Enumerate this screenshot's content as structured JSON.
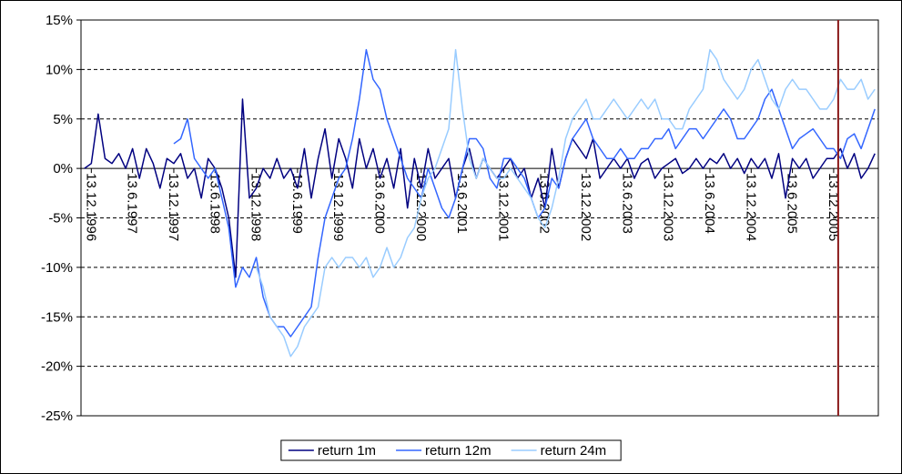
{
  "chart_data": {
    "type": "line",
    "categories": [
      null,
      "13.12.1996",
      null,
      null,
      null,
      null,
      null,
      "13.6.1997",
      null,
      null,
      null,
      null,
      null,
      "13.12.1997",
      null,
      null,
      null,
      null,
      null,
      "13.6.1998",
      null,
      null,
      null,
      null,
      null,
      "13.12.1998",
      null,
      null,
      null,
      null,
      null,
      "13.6.1999",
      null,
      null,
      null,
      null,
      null,
      "13.12.1999",
      null,
      null,
      null,
      null,
      null,
      "13.6.2000",
      null,
      null,
      null,
      null,
      null,
      "13.12.2000",
      null,
      null,
      null,
      null,
      null,
      "13.6.2001",
      null,
      null,
      null,
      null,
      null,
      "13.12.2001",
      null,
      null,
      null,
      null,
      null,
      "13.6.2002",
      null,
      null,
      null,
      null,
      null,
      "13.12.2002",
      null,
      null,
      null,
      null,
      null,
      "13.6.2003",
      null,
      null,
      null,
      null,
      null,
      "13.12.2003",
      null,
      null,
      null,
      null,
      null,
      "13.6.2004",
      null,
      null,
      null,
      null,
      null,
      "13.12.2004",
      null,
      null,
      null,
      null,
      null,
      "13.6.2005",
      null,
      null,
      null,
      null,
      null,
      "13.12.2005",
      null,
      null,
      null,
      null,
      null,
      null
    ],
    "series": [
      {
        "name": "return 1m",
        "color": "#000080",
        "values": [
          0,
          0.5,
          5.5,
          1,
          0.5,
          1.5,
          0,
          2,
          -1,
          2,
          0.5,
          -2,
          1,
          0.5,
          1.5,
          -1,
          0,
          -3,
          1,
          0,
          -2,
          -5,
          -11,
          7,
          -3,
          -2,
          0,
          -1,
          1,
          -1,
          0,
          -2,
          2,
          -3,
          1,
          4,
          -1,
          3,
          1,
          -2,
          3,
          0,
          2,
          -1,
          1,
          -2,
          2,
          -4,
          1,
          -2,
          2,
          -1,
          0,
          1,
          -3,
          0,
          2,
          -1,
          1,
          0,
          -1,
          0,
          1,
          -1,
          0,
          -3,
          -1,
          -4,
          2,
          -2,
          1,
          3,
          2,
          1,
          3,
          -1,
          0,
          1,
          0,
          1,
          -1,
          0.5,
          1,
          -1,
          0,
          0.5,
          1,
          -0.5,
          0,
          1,
          0,
          1,
          0.5,
          1.5,
          0,
          1,
          -0.5,
          1,
          0,
          1,
          -1,
          1.5,
          -3,
          1,
          0,
          1,
          -1,
          0,
          1,
          1,
          2,
          0,
          1.5,
          -1,
          0,
          1.5
        ]
      },
      {
        "name": "return 12m",
        "color": "#3366ff",
        "values": [
          null,
          null,
          null,
          null,
          null,
          null,
          null,
          null,
          null,
          null,
          null,
          null,
          null,
          2.5,
          3,
          5,
          1,
          0,
          -1,
          0,
          -3,
          -6,
          -12,
          -10,
          -11,
          -9,
          -13,
          -15,
          -16,
          -16,
          -17,
          -16,
          -15,
          -14,
          -9,
          -5,
          -3,
          -1,
          0,
          3,
          7,
          12,
          9,
          8,
          5,
          3,
          1,
          -1,
          -2,
          -3,
          0,
          -2,
          -4,
          -5,
          -3,
          0,
          3,
          3,
          2,
          -1,
          -2,
          1,
          1,
          0,
          -1,
          -3,
          -5,
          -4,
          -1,
          -2,
          1,
          3,
          4,
          5,
          3,
          2,
          1,
          1,
          2,
          1,
          1,
          2,
          2,
          3,
          3,
          4,
          2,
          3,
          4,
          4,
          3,
          4,
          5,
          6,
          5,
          3,
          3,
          4,
          5,
          7,
          8,
          6,
          4,
          2,
          3,
          3.5,
          4,
          3,
          2,
          2,
          1,
          3,
          3.5,
          2,
          4,
          6
        ]
      },
      {
        "name": "return 24m",
        "color": "#99ccff",
        "values": [
          null,
          null,
          null,
          null,
          null,
          null,
          null,
          null,
          null,
          null,
          null,
          null,
          null,
          null,
          null,
          null,
          null,
          null,
          null,
          null,
          null,
          null,
          null,
          null,
          null,
          -10,
          -12,
          -15,
          -16,
          -17,
          -19,
          -18,
          -16,
          -15,
          -14,
          -10,
          -9,
          -10,
          -9,
          -9,
          -10,
          -9,
          -11,
          -10,
          -8,
          -10,
          -9,
          -7,
          -6,
          -3,
          -1,
          0,
          2,
          4,
          12,
          6,
          1,
          -1,
          1,
          0,
          -1,
          -1,
          0,
          -1,
          -2,
          -3,
          -5,
          -6,
          -4,
          -1,
          3,
          5,
          6,
          7,
          5,
          5,
          6,
          7,
          6,
          5,
          6,
          7,
          6,
          7,
          5,
          5,
          4,
          4,
          6,
          7,
          8,
          12,
          11,
          9,
          8,
          7,
          8,
          10,
          11,
          9,
          7,
          6,
          8,
          9,
          8,
          8,
          7,
          6,
          6,
          7,
          9,
          8,
          8,
          9,
          7,
          8
        ]
      }
    ],
    "ylim": [
      -25,
      15
    ],
    "yticks": [
      {
        "value": -25,
        "label": "-25%"
      },
      {
        "value": -20,
        "label": "-20%"
      },
      {
        "value": -15,
        "label": "-15%"
      },
      {
        "value": -10,
        "label": "-10%"
      },
      {
        "value": -5,
        "label": "-5%"
      },
      {
        "value": 0,
        "label": "0%"
      },
      {
        "value": 5,
        "label": "5%"
      },
      {
        "value": 10,
        "label": "10%"
      },
      {
        "value": 15,
        "label": "15%"
      }
    ],
    "grid": true,
    "legend": "bottom",
    "marker_line": {
      "category": "13.12.2005",
      "color": "#8b1a1a"
    }
  }
}
